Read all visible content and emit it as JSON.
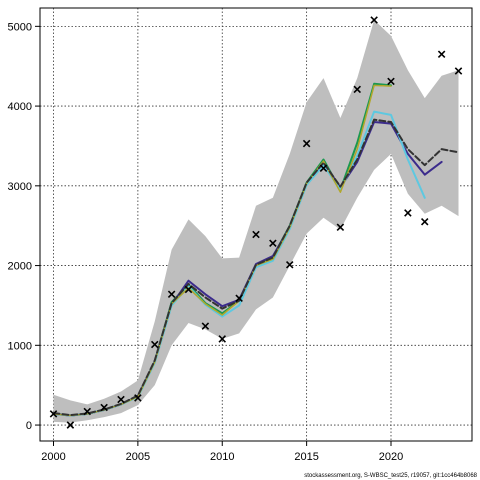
{
  "chart_data": {
    "type": "line",
    "title": "",
    "xlabel": "",
    "ylabel": "",
    "xlim": [
      1999.2,
      2024.8
    ],
    "ylim": [
      -200,
      5230
    ],
    "x_ticks": [
      2000,
      2005,
      2010,
      2015,
      2020
    ],
    "y_ticks": [
      0,
      1000,
      2000,
      3000,
      4000,
      5000
    ],
    "grid": true,
    "grid_style": "dotted",
    "band": {
      "years": [
        2000,
        2001,
        2002,
        2003,
        2004,
        2005,
        2006,
        2007,
        2008,
        2009,
        2010,
        2011,
        2012,
        2013,
        2014,
        2015,
        2016,
        2017,
        2018,
        2019,
        2020,
        2021,
        2022,
        2023,
        2024
      ],
      "lower": [
        40,
        30,
        60,
        100,
        150,
        250,
        500,
        1000,
        1280,
        1200,
        1080,
        1150,
        1450,
        1600,
        2000,
        2400,
        2600,
        2450,
        2850,
        3200,
        3400,
        2900,
        2650,
        2750,
        2620
      ],
      "upper": [
        380,
        310,
        260,
        330,
        420,
        560,
        1300,
        2200,
        2580,
        2370,
        2090,
        2100,
        2750,
        2850,
        3400,
        4050,
        4350,
        3850,
        4350,
        5080,
        4880,
        4450,
        4100,
        4380,
        4450
      ],
      "color": "#bebebe"
    },
    "series": [
      {
        "color": "#1a9850",
        "width": 2,
        "x": [
          2000,
          2001,
          2002,
          2003,
          2004,
          2005,
          2006,
          2007,
          2008,
          2009,
          2010,
          2011,
          2012,
          2013,
          2014,
          2015,
          2016,
          2017,
          2018,
          2019,
          2020
        ],
        "y": [
          140,
          120,
          140,
          190,
          260,
          360,
          800,
          1540,
          1760,
          1530,
          1400,
          1560,
          2010,
          2110,
          2500,
          3040,
          3330,
          2950,
          3540,
          4280,
          4260
        ]
      },
      {
        "color": "#3b2b8c",
        "width": 2,
        "x": [
          2000,
          2001,
          2002,
          2003,
          2004,
          2005,
          2006,
          2007,
          2008,
          2009,
          2010,
          2011,
          2012,
          2013,
          2014,
          2015,
          2016,
          2017,
          2018,
          2019,
          2020,
          2021,
          2022,
          2023
        ],
        "y": [
          140,
          120,
          140,
          190,
          260,
          360,
          790,
          1510,
          1810,
          1640,
          1490,
          1570,
          2020,
          2120,
          2480,
          3020,
          3290,
          2980,
          3300,
          3800,
          3780,
          3400,
          3140,
          3300
        ]
      },
      {
        "color": "#5ec8e0",
        "width": 2,
        "x": [
          2000,
          2001,
          2002,
          2003,
          2004,
          2005,
          2006,
          2007,
          2008,
          2009,
          2010,
          2011,
          2012,
          2013,
          2014,
          2015,
          2016,
          2017,
          2018,
          2019,
          2020,
          2021,
          2022
        ],
        "y": [
          140,
          120,
          140,
          190,
          260,
          350,
          780,
          1500,
          1740,
          1510,
          1360,
          1500,
          1980,
          2060,
          2460,
          3010,
          3260,
          2950,
          3380,
          3930,
          3890,
          3330,
          2850
        ]
      },
      {
        "color": "#b2a72a",
        "width": 1.5,
        "x": [
          2000,
          2001,
          2002,
          2003,
          2004,
          2005,
          2006,
          2007,
          2008,
          2009,
          2010,
          2011,
          2012,
          2013,
          2014,
          2015,
          2016,
          2017,
          2018,
          2019,
          2020
        ],
        "y": [
          140,
          120,
          140,
          190,
          260,
          355,
          790,
          1520,
          1720,
          1520,
          1380,
          1560,
          2000,
          2080,
          2480,
          3030,
          3310,
          2920,
          3460,
          4260,
          4250
        ]
      },
      {
        "color": "#333333",
        "width": 2,
        "dash": "6,3",
        "x": [
          2000,
          2001,
          2002,
          2003,
          2004,
          2005,
          2006,
          2007,
          2008,
          2009,
          2010,
          2011,
          2012,
          2013,
          2014,
          2015,
          2016,
          2017,
          2018,
          2019,
          2020,
          2021,
          2022,
          2023,
          2024
        ],
        "y": [
          150,
          125,
          145,
          195,
          265,
          370,
          810,
          1530,
          1770,
          1600,
          1460,
          1560,
          2010,
          2100,
          2500,
          3040,
          3290,
          2990,
          3330,
          3830,
          3800,
          3460,
          3260,
          3460,
          3420
        ]
      }
    ],
    "observations": {
      "marker": "x",
      "x": [
        2000,
        2001,
        2002,
        2003,
        2004,
        2005,
        2006,
        2007,
        2008,
        2009,
        2010,
        2011,
        2012,
        2013,
        2014,
        2015,
        2016,
        2017,
        2018,
        2019,
        2020,
        2021,
        2022,
        2023,
        2024
      ],
      "y": [
        140,
        0,
        170,
        220,
        320,
        340,
        1010,
        1640,
        1700,
        1240,
        1080,
        1590,
        2390,
        2280,
        2010,
        3530,
        3220,
        2480,
        4210,
        5080,
        4310,
        2660,
        2550,
        4650,
        4440
      ]
    }
  },
  "footer_text": "stockassessment.org, S-WBSC_test25, r19057, git:1cc464b8068"
}
